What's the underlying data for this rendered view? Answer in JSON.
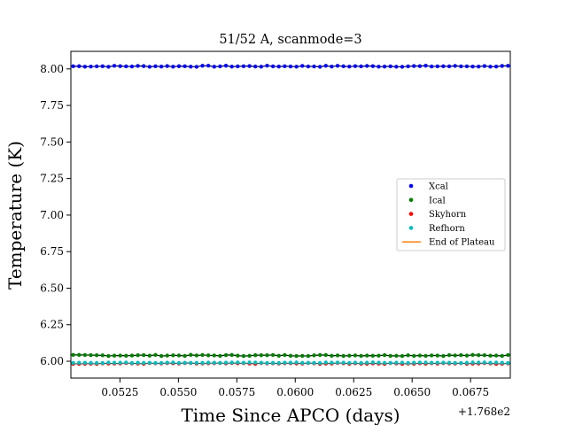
{
  "chart_data": {
    "type": "scatter",
    "title": "51/52 A, scanmode=3",
    "xlabel": "Time Since APCO (days)",
    "ylabel": "Temperature (K)",
    "x_offset_label": "+1.768e2",
    "xlim": [
      0.0504,
      0.0692
    ],
    "ylim": [
      5.885,
      8.12
    ],
    "xticks": [
      0.0525,
      0.055,
      0.0575,
      0.06,
      0.0625,
      0.065,
      0.0675
    ],
    "xtick_labels": [
      "0.0525",
      "0.0550",
      "0.0575",
      "0.0600",
      "0.0625",
      "0.0650",
      "0.0675"
    ],
    "yticks": [
      6.0,
      6.25,
      6.5,
      6.75,
      7.0,
      7.25,
      7.5,
      7.75,
      8.0
    ],
    "ytick_labels": [
      "6.00",
      "6.25",
      "6.50",
      "6.75",
      "7.00",
      "7.25",
      "7.50",
      "7.75",
      "8.00"
    ],
    "grid": false,
    "legend_position": "center-right",
    "x_range_sampled": [
      0.0505,
      0.0691
    ],
    "series": [
      {
        "name": "Xcal",
        "color": "#0000ff",
        "marker": "dot",
        "mean": 8.018,
        "jitter": 0.004,
        "line_color": "#000000"
      },
      {
        "name": "Ical",
        "color": "#008000",
        "marker": "dot",
        "mean": 6.04,
        "jitter": 0.004,
        "line_color": "#000000"
      },
      {
        "name": "Skyhorn",
        "color": "#ff0000",
        "marker": "dot",
        "mean": 5.985,
        "jitter": 0.003,
        "line_color": "#555555"
      },
      {
        "name": "Refhorn",
        "color": "#00bfbf",
        "marker": "dot",
        "mean": 5.99,
        "jitter": 0.002,
        "line_color": null
      },
      {
        "name": "End of Plateau",
        "color": "#ff7f0e",
        "marker": "line",
        "mean": null,
        "jitter": null,
        "line_color": null
      }
    ],
    "points_per_series": 75
  }
}
